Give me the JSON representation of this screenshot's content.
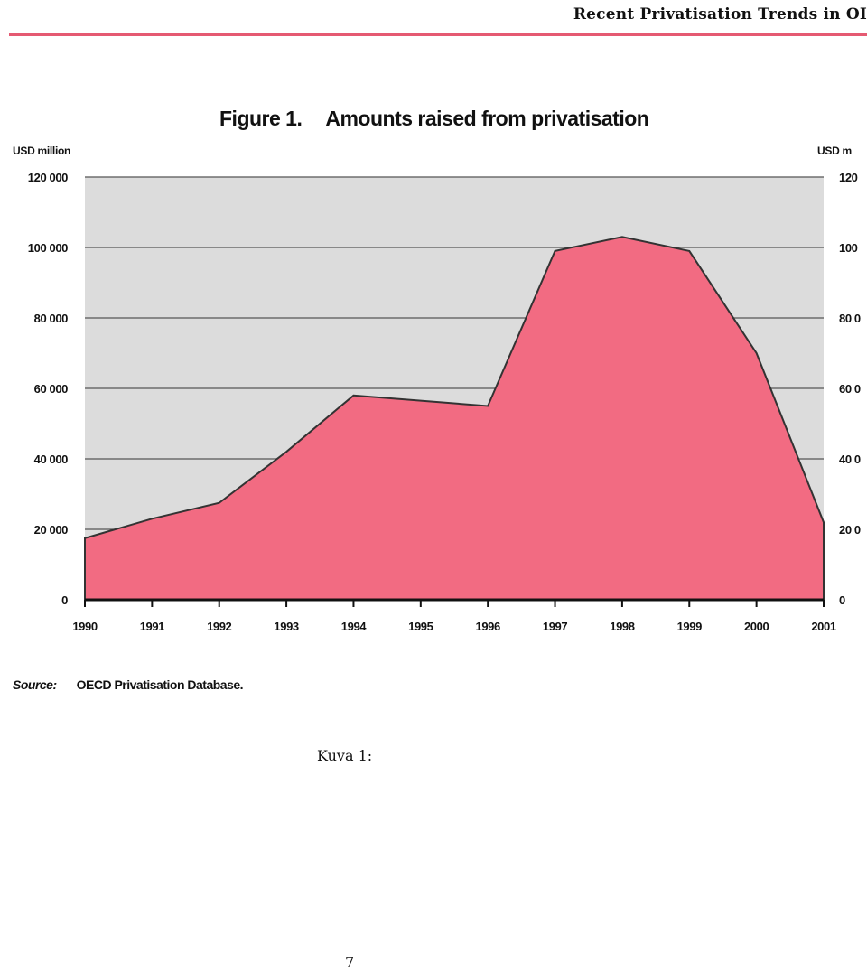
{
  "page": {
    "running_header": "Recent Privatisation Trends in OI",
    "caption": "Kuva 1:",
    "page_number": "7"
  },
  "figure": {
    "number": "Figure 1.",
    "title": "Amounts raised from privatisation",
    "unit_left": "USD million",
    "unit_right": "USD m",
    "source_label": "Source:",
    "source_text": "OECD Privatisation Database."
  },
  "chart_data": {
    "type": "area",
    "title": "Amounts raised from privatisation",
    "ylabel": "USD million",
    "x": [
      1990,
      1991,
      1992,
      1993,
      1994,
      1995,
      1996,
      1997,
      1998,
      1999,
      2000,
      2001
    ],
    "x_tick_labels": [
      "1990",
      "1991",
      "1992",
      "1993",
      "1994",
      "1995",
      "1996",
      "1997",
      "1998",
      "1999",
      "2000",
      "2001"
    ],
    "series": [
      {
        "values": [
          17500,
          23000,
          27500,
          42000,
          58000,
          56500,
          55000,
          99000,
          103000,
          99000,
          70000,
          22000
        ]
      }
    ],
    "ylim": [
      0,
      120000
    ],
    "y_ticks": [
      0,
      20000,
      40000,
      60000,
      80000,
      100000,
      120000
    ],
    "y_tick_labels_left": [
      "0",
      "20 000",
      "40 000",
      "60 000",
      "80 000",
      "100 000",
      "120 000"
    ],
    "y_tick_labels_right": [
      "0",
      "20 0",
      "40 0",
      "60 0",
      "80 0",
      "100",
      "120"
    ],
    "grid": true,
    "colors": {
      "fill": "#f26b82",
      "plot_background": "#dcdcdc",
      "line": "#333333",
      "header_rule": "#e55a72"
    }
  }
}
